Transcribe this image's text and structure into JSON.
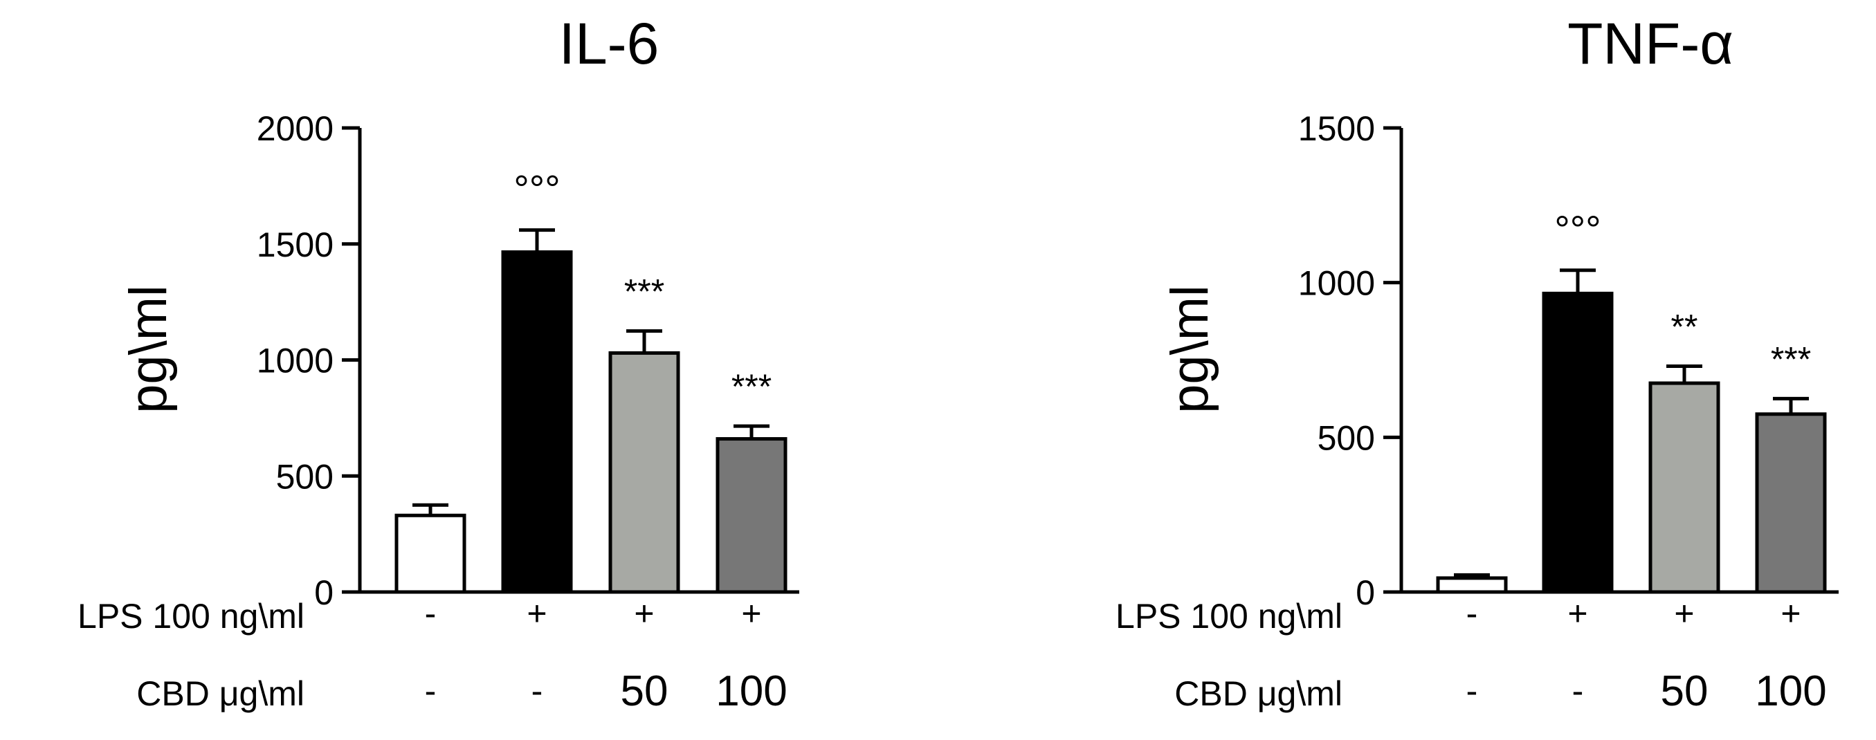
{
  "chart_data": [
    {
      "type": "bar",
      "title": "IL-6",
      "ylabel": "pg\\ml",
      "ylim": [
        0,
        2000
      ],
      "yticks": [
        0,
        500,
        1000,
        1500,
        2000
      ],
      "categories": [
        "LPS - / CBD -",
        "LPS + / CBD -",
        "LPS + / CBD 50",
        "LPS + / CBD 100"
      ],
      "values": [
        330,
        1465,
        1030,
        660
      ],
      "errors": [
        45,
        95,
        95,
        55
      ],
      "bar_colors": [
        "#ffffff",
        "#000000",
        "#a7a9a4",
        "#777777"
      ],
      "annotations": [
        "",
        "°°°",
        "***",
        "***"
      ],
      "treatment_rows": [
        {
          "label": "LPS 100 ng\\ml",
          "values": [
            "-",
            "+",
            "+",
            "+"
          ]
        },
        {
          "label": "CBD μg\\ml",
          "values": [
            "-",
            "-",
            "50",
            "100"
          ]
        }
      ]
    },
    {
      "type": "bar",
      "title": "TNF-α",
      "ylabel": "pg\\ml",
      "ylim": [
        0,
        1500
      ],
      "yticks": [
        0,
        500,
        1000,
        1500
      ],
      "categories": [
        "LPS - / CBD -",
        "LPS + / CBD -",
        "LPS + / CBD 50",
        "LPS + / CBD 100"
      ],
      "values": [
        45,
        965,
        675,
        575
      ],
      "errors": [
        10,
        75,
        55,
        50
      ],
      "bar_colors": [
        "#ffffff",
        "#000000",
        "#a7a9a4",
        "#777777"
      ],
      "annotations": [
        "",
        "°°°",
        "**",
        "***"
      ],
      "treatment_rows": [
        {
          "label": "LPS 100 ng\\ml",
          "values": [
            "-",
            "+",
            "+",
            "+"
          ]
        },
        {
          "label": "CBD μg\\ml",
          "values": [
            "-",
            "-",
            "50",
            "100"
          ]
        }
      ]
    }
  ]
}
